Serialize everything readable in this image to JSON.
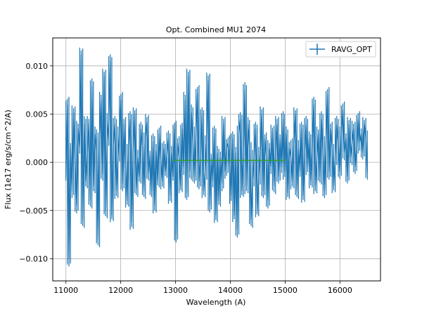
{
  "chart_data": {
    "type": "line",
    "title": "Opt. Combined MU1 2074",
    "xlabel": "Wavelength (A)",
    "ylabel": "Flux (1e17 erg/s/cm^2/A)",
    "xlim": [
      10760,
      16740
    ],
    "ylim": [
      -0.0123,
      0.0129
    ],
    "xticks": [
      11000,
      12000,
      13000,
      14000,
      15000,
      16000
    ],
    "xtick_labels": [
      "11000",
      "12000",
      "13000",
      "14000",
      "15000",
      "16000"
    ],
    "yticks": [
      -0.01,
      -0.005,
      0.0,
      0.005,
      0.01
    ],
    "ytick_labels": [
      "−0.010",
      "−0.005",
      "0.000",
      "0.005",
      "0.010"
    ],
    "grid": true,
    "legend": {
      "position": "top-right",
      "entries": [
        "RAVG_OPT"
      ]
    },
    "series": [
      {
        "name": "RAVG_OPT",
        "color": "#1f77b4",
        "style": "errorbar-line",
        "x_start": 11000,
        "x_end": 16500,
        "y": [
          -0.0015,
          0.006,
          -0.01,
          0.0015,
          -0.003,
          0.0052,
          0.0002,
          -0.0045,
          0.0035,
          0.0016,
          0.0112,
          -0.006,
          0.004,
          -0.002,
          0.0008,
          0.0041,
          -0.004,
          0.0079,
          -0.0025,
          0.003,
          0.0012,
          -0.008,
          0.0025,
          0.0065,
          -0.0012,
          0.009,
          -0.005,
          0.0022,
          0.0043,
          0.0105,
          -0.0055,
          0.0018,
          0.004,
          -0.003,
          0.0005,
          0.003,
          0.0065,
          -0.0022,
          0.004,
          -0.0005,
          -0.004,
          0.0015,
          0.0045,
          -0.0062,
          0.0012,
          0.005,
          -0.0028,
          0.0005,
          -0.0015,
          0.0035,
          0.0015,
          -0.003,
          0.0025,
          0.0042,
          -0.0012,
          0.0008,
          -0.003,
          0.0022,
          -0.0045,
          0.0012,
          -0.002,
          0.003,
          0.0002,
          -0.002,
          0.0015,
          -0.001,
          0.0008,
          0.0025,
          -0.0035,
          0.001,
          -0.0015,
          0.0035,
          -0.0075,
          0.002,
          0.0005,
          -0.0025,
          0.0035,
          -0.0005,
          0.0065,
          -0.0032,
          0.009,
          -0.001,
          0.0052,
          0.002,
          -0.0015,
          0.003,
          0.0072,
          -0.002,
          0.0005,
          0.005,
          -0.003,
          -0.001,
          0.0022,
          0.0085,
          -0.0045,
          0.0005,
          -0.002,
          0.003,
          -0.0055,
          0.001,
          -0.004,
          0.0005,
          -0.0022,
          0.004,
          -0.001,
          0.0015,
          0.002,
          -0.0005,
          -0.0035,
          0.0025,
          -0.0055,
          0.001,
          -0.007,
          0.003,
          0.0045,
          -0.003,
          0.001,
          0.0075,
          -0.0025,
          0.004,
          0.0015,
          -0.006,
          -0.002,
          0.0005,
          0.0035,
          -0.005,
          -0.0015,
          0.001,
          0.005,
          -0.003,
          0.0025,
          0.0005,
          -0.004,
          0.0015,
          -0.0005,
          0.0032,
          -0.0025,
          0.001,
          0.004,
          -0.0015,
          0.0025,
          -0.0005,
          0.0045,
          -0.001,
          0.003,
          -0.0032,
          0.0015,
          0.0005,
          -0.002,
          0.002,
          0.005,
          -0.003,
          0.0015,
          -0.001,
          0.0035,
          -0.0035,
          0.001,
          0.004,
          -0.0005,
          0.0025,
          -0.002,
          0.0015,
          0.006,
          -0.0025,
          0.0005,
          0.003,
          -0.0015,
          0.0045,
          0.001,
          -0.003,
          0.002,
          0.007,
          -0.001,
          0.0035,
          0.0015,
          -0.0025,
          0.0005,
          0.004,
          0.002,
          -0.001,
          0.003,
          0.0055,
          0.001,
          0.0025,
          -0.0015,
          0.004,
          0.0005,
          0.002,
          0.0035,
          -0.0005,
          0.0015,
          0.0045,
          0.002,
          0.003,
          0.001,
          0.004,
          0.0025,
          -0.001
        ]
      },
      {
        "name": "",
        "color": "#2ca02c",
        "style": "line",
        "x": [
          12950,
          15000
        ],
        "y": [
          0.0002,
          0.0002
        ]
      }
    ]
  }
}
